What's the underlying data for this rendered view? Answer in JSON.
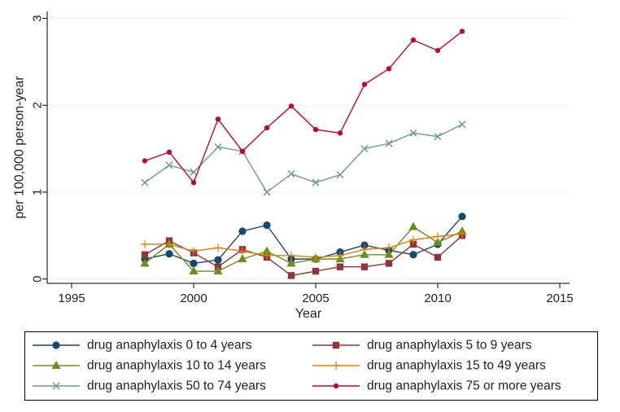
{
  "chart_data": {
    "type": "line",
    "xlabel": "Year",
    "ylabel": "per 100,000 person-year",
    "xlim": [
      1994,
      2015.4
    ],
    "ylim": [
      -0.05,
      3.08
    ],
    "xticks": [
      1995,
      2000,
      2005,
      2010,
      2015
    ],
    "yticks": [
      0,
      1,
      2,
      3
    ],
    "grid": "horizontal",
    "legend_position": "bottom",
    "x": [
      1998,
      1999,
      2000,
      2001,
      2002,
      2003,
      2004,
      2005,
      2006,
      2007,
      2008,
      2009,
      2010,
      2011
    ],
    "series": [
      {
        "name": "drug anaphylaxis 0 to 4 years",
        "color": "#1a476f",
        "marker": "circle",
        "values": [
          0.23,
          0.29,
          0.18,
          0.22,
          0.55,
          0.62,
          0.23,
          0.23,
          0.31,
          0.39,
          0.33,
          0.28,
          0.4,
          0.72
        ]
      },
      {
        "name": "drug anaphylaxis 5 to 9 years",
        "color": "#90353b",
        "marker": "square",
        "values": [
          0.28,
          0.44,
          0.3,
          0.14,
          0.34,
          0.25,
          0.04,
          0.09,
          0.14,
          0.14,
          0.18,
          0.4,
          0.25,
          0.5
        ]
      },
      {
        "name": "drug anaphylaxis 10 to 14 years",
        "color": "#6e8e1a",
        "marker": "triangle",
        "values": [
          0.18,
          0.4,
          0.09,
          0.09,
          0.23,
          0.32,
          0.18,
          0.23,
          0.23,
          0.28,
          0.28,
          0.6,
          0.42,
          0.55
        ]
      },
      {
        "name": "drug anaphylaxis 15 to 49 years",
        "color": "#e37e00",
        "marker": "plus",
        "values": [
          0.4,
          0.4,
          0.32,
          0.36,
          0.32,
          0.27,
          0.27,
          0.25,
          0.27,
          0.34,
          0.36,
          0.45,
          0.49,
          0.52
        ]
      },
      {
        "name": "drug anaphylaxis 50 to 74 years",
        "color": "#6d9c8e",
        "marker": "x",
        "values": [
          1.11,
          1.31,
          1.23,
          1.52,
          1.47,
          1.0,
          1.21,
          1.11,
          1.2,
          1.5,
          1.56,
          1.68,
          1.64,
          1.78
        ]
      },
      {
        "name": "drug anaphylaxis 75 or more years",
        "color": "#c10534",
        "marker": "circle-small",
        "values": [
          1.36,
          1.46,
          1.11,
          1.84,
          1.47,
          1.74,
          1.99,
          1.72,
          1.68,
          2.24,
          2.42,
          2.75,
          2.63,
          2.85
        ]
      }
    ]
  }
}
